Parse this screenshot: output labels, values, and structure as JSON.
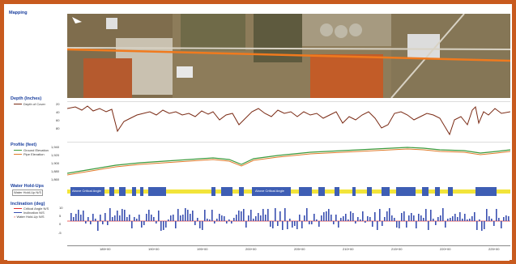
{
  "sections": {
    "mapping": "Mapping",
    "depth": {
      "title": "Depth (Inches)",
      "legend": "Depth of Cover"
    },
    "profile": {
      "title": "Profile (feet)",
      "legend_ground": "Ground Elevation",
      "legend_pipe": "Pipe Elevation"
    },
    "water": {
      "title": "Water Hold-Ups",
      "legend": "Water Hold-Up N/S"
    },
    "inclination": {
      "title": "Inclination (deg)",
      "legend_critical": "Critical Angle N/S",
      "legend_inclination": "Inclination N/S",
      "legend_water": "Water Hold-Up N/S"
    }
  },
  "depth_ticks": [
    "20",
    "40",
    "60",
    "80"
  ],
  "profile_ticks": [
    "1,940",
    "1,920",
    "1,900",
    "1,880",
    "1,860"
  ],
  "incl_ticks": [
    "10",
    "5",
    "0",
    "-5"
  ],
  "water_band": {
    "label1": "Above Critical Angle",
    "label2": "Above Critical Angle"
  },
  "station_ticks": [
    "185+00",
    "190+00",
    "195+00",
    "200+00",
    "205+00",
    "210+00",
    "215+00",
    "220+00",
    "225+00"
  ],
  "colors": {
    "frame": "#c85a1e",
    "depth_line": "#7a2a14",
    "ground": "#3c9a3c",
    "pipe": "#e07b2a",
    "water_band": "#f2e43a",
    "water_block": "#3e5eb4",
    "bar": "#3a4fb0",
    "critical": "#e03030"
  }
}
